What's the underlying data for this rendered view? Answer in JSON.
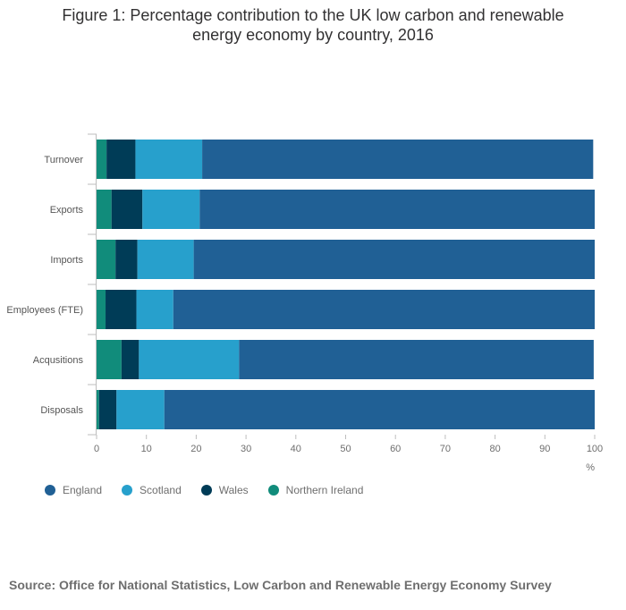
{
  "title_line1": "Figure 1: Percentage contribution to the UK low carbon and renewable",
  "title_line2": "energy economy by country, 2016",
  "source": "Source: Office for National Statistics, Low Carbon and Renewable Energy Economy Survey",
  "chart_data": {
    "type": "bar",
    "orientation": "horizontal",
    "stacked": true,
    "categories": [
      "Turnover",
      "Exports",
      "Imports",
      "Employees (FTE)",
      "Acqusitions",
      "Disposals"
    ],
    "series": [
      {
        "name": "Northern Ireland",
        "color": "#118c7b",
        "values": [
          2.0,
          3.0,
          3.8,
          1.8,
          5.0,
          0.5
        ]
      },
      {
        "name": "Wales",
        "color": "#003c57",
        "values": [
          5.8,
          6.2,
          4.4,
          6.2,
          3.5,
          3.5
        ]
      },
      {
        "name": "Scotland",
        "color": "#27a0cc",
        "values": [
          13.4,
          11.5,
          11.3,
          7.4,
          20.1,
          9.6
        ]
      },
      {
        "name": "England",
        "color": "#206095",
        "values": [
          78.5,
          79.3,
          80.5,
          84.6,
          71.2,
          86.4
        ]
      }
    ],
    "legend_order": [
      "England",
      "Scotland",
      "Wales",
      "Northern Ireland"
    ],
    "xlim": [
      0,
      100
    ],
    "xticks": [
      0,
      10,
      20,
      30,
      40,
      50,
      60,
      70,
      80,
      90,
      100
    ],
    "xlabel": "%",
    "ylabel": "",
    "grid": false,
    "legend_position": "bottom-left"
  }
}
